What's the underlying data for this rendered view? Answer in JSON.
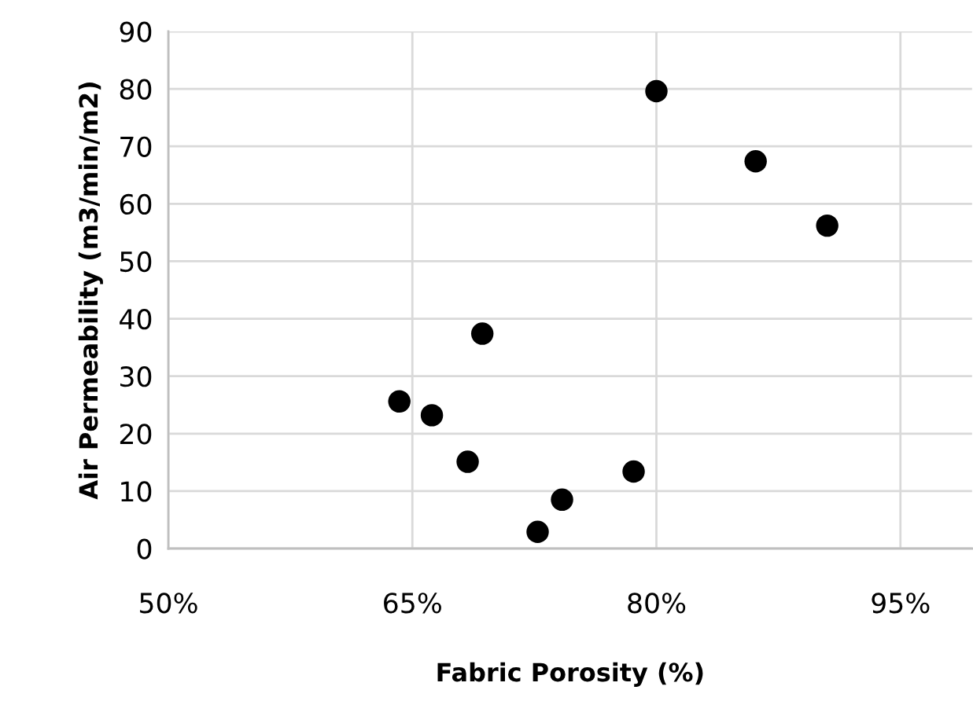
{
  "chart_data": {
    "type": "scatter",
    "xlabel": "Fabric Porosity (%)",
    "ylabel": "Air Permeability (m3/min/m2)",
    "x": [
      80.0,
      86.1,
      90.5,
      69.3,
      64.2,
      66.2,
      68.4,
      78.6,
      74.2,
      72.7
    ],
    "series": [
      {
        "color": "#000000",
        "values": [
          79.6,
          67.4,
          56.2,
          37.4,
          25.6,
          23.2,
          15.1,
          13.4,
          8.5,
          2.9
        ]
      }
    ],
    "marker": "circle",
    "xlim": [
      50,
      99.4
    ],
    "xticks": [
      {
        "value": 50,
        "label": "50%"
      },
      {
        "value": 65,
        "label": "65%"
      },
      {
        "value": 80,
        "label": "80%"
      },
      {
        "value": 95,
        "label": "95%"
      }
    ],
    "ylim": [
      0,
      90
    ],
    "yticks": [
      0,
      10,
      20,
      30,
      40,
      50,
      60,
      70,
      80,
      90
    ],
    "grid": true
  }
}
